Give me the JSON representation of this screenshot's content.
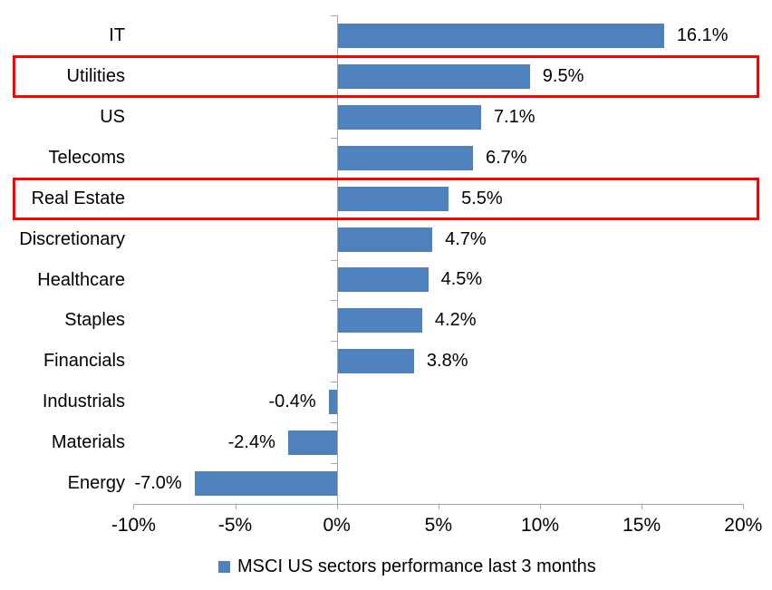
{
  "chart_data": {
    "type": "bar",
    "orientation": "horizontal",
    "title": "",
    "categories": [
      "IT",
      "Utilities",
      "US",
      "Telecoms",
      "Real Estate",
      "Discretionary",
      "Healthcare",
      "Staples",
      "Financials",
      "Industrials",
      "Materials",
      "Energy"
    ],
    "values": [
      16.1,
      9.5,
      7.1,
      6.7,
      5.5,
      4.7,
      4.5,
      4.2,
      3.8,
      -0.4,
      -2.4,
      -7.0
    ],
    "value_labels": [
      "16.1%",
      "9.5%",
      "7.1%",
      "6.7%",
      "5.5%",
      "4.7%",
      "4.5%",
      "4.2%",
      "3.8%",
      "-0.4%",
      "-2.4%",
      "-7.0%"
    ],
    "xlim": [
      -10,
      20
    ],
    "x_tick_values": [
      -10,
      -5,
      0,
      5,
      10,
      15,
      20
    ],
    "x_tick_labels": [
      "-10%",
      "-5%",
      "0%",
      "5%",
      "10%",
      "15%",
      "20%"
    ],
    "grid": false,
    "legend": "MSCI US sectors performance last 3 months",
    "legend_position": "bottom-center",
    "highlighted_categories": [
      "Utilities",
      "Real Estate"
    ],
    "colors": {
      "bar": "#4F81BD",
      "highlight_box": "#FF0000",
      "axis": "#A6A6A6",
      "text": "#000000"
    }
  }
}
